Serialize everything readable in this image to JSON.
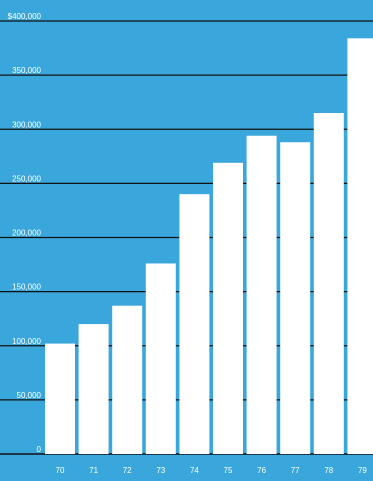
{
  "chart_data": {
    "type": "bar",
    "categories": [
      "70",
      "71",
      "72",
      "73",
      "74",
      "75",
      "76",
      "77",
      "78",
      "79"
    ],
    "values": [
      102000,
      120000,
      137000,
      176000,
      240000,
      269000,
      294000,
      288000,
      315000,
      384000
    ],
    "ylim": [
      0,
      400000
    ],
    "yticks": [
      0,
      50000,
      100000,
      150000,
      200000,
      250000,
      300000,
      350000,
      400000
    ],
    "ytick_labels": [
      "0",
      "50,000",
      "100,000",
      "150,000",
      "200,000",
      "250,000",
      "300,000",
      "350,000",
      "$400,000"
    ],
    "grid": true,
    "colors": {
      "background": "#3aa7dc",
      "bars": "#ffffff",
      "gridlines": "#111111",
      "labels": "#ffffff"
    }
  }
}
